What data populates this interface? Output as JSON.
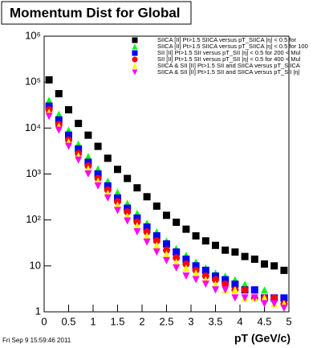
{
  "chart_data": {
    "type": "scatter",
    "title": "Momentum Dist for Global",
    "x_label": "pT (GeV/c)",
    "footer": "Fri Sep  9 15:59:46 2011",
    "log_y": true,
    "xlim": [
      0,
      5
    ],
    "xticks": [
      0,
      0.5,
      1,
      1.5,
      2,
      2.5,
      3,
      3.5,
      4,
      4.5,
      5
    ],
    "ylim": [
      1,
      1000000
    ],
    "yticks": [
      1,
      10,
      {
        "value": 100,
        "label": "10²"
      },
      {
        "value": 1000,
        "label": "10³"
      },
      {
        "value": 10000,
        "label": "10⁴"
      },
      {
        "value": 100000,
        "label": "10⁵"
      },
      {
        "value": 1000000,
        "label": "10⁶"
      }
    ],
    "x": [
      0.1,
      0.3,
      0.5,
      0.7,
      0.9,
      1.1,
      1.3,
      1.5,
      1.7,
      1.9,
      2.1,
      2.3,
      2.5,
      2.7,
      2.9,
      3.1,
      3.3,
      3.5,
      3.7,
      3.9,
      4.1,
      4.3,
      4.5,
      4.7,
      4.9
    ],
    "series": [
      {
        "name": "SIICA [II] Pt>1.5 SIICA versus pT_SIICA |η| < 0.5 for",
        "color": "#000000",
        "marker": "square",
        "values": [
          112000,
          56000,
          25000,
          12600,
          7000,
          4000,
          2200,
          1260,
          800,
          500,
          320,
          200,
          126,
          89,
          63,
          45,
          35,
          28,
          22,
          20,
          16,
          14,
          11,
          10,
          8
        ]
      },
      {
        "name": "SIICA [II] Pt>1.5 SIICA versus pT_SIICA |η| < 0.5 for 100",
        "color": "#00ff00",
        "marker": "triangle",
        "values": [
          40000,
          20000,
          9000,
          4500,
          2400,
          1300,
          700,
          400,
          230,
          140,
          85,
          55,
          35,
          24,
          17,
          12,
          9,
          7,
          6,
          5,
          4,
          3,
          3,
          2,
          2
        ]
      },
      {
        "name": "SII [II] Pt>1.5 SII versus pT_SII |η| < 0.5 for 200 < Mul",
        "color": "#0000ff",
        "marker": "square",
        "values": [
          30000,
          15000,
          7000,
          3500,
          1800,
          1000,
          550,
          300,
          180,
          110,
          70,
          45,
          30,
          20,
          14,
          10,
          8,
          6,
          5,
          4,
          3,
          3,
          2,
          2,
          2
        ]
      },
      {
        "name": "SII [II] Pt>1.5 SII versus pT_SII |η| < 0.5 for 400 < Mul",
        "color": "#ff0000",
        "marker": "circle",
        "values": [
          25000,
          12000,
          5500,
          2800,
          1500,
          800,
          450,
          250,
          150,
          90,
          55,
          35,
          22,
          15,
          11,
          8,
          6,
          5,
          4,
          3,
          3,
          2,
          2,
          2,
          1.5
        ]
      },
      {
        "name": "SIICA & SII [II] Pt>1.5 SII and SIICA versus pT_SIICA",
        "color": "#ffff00",
        "marker": "triangle",
        "values": [
          22000,
          11000,
          5000,
          2500,
          1300,
          700,
          380,
          210,
          120,
          75,
          45,
          28,
          18,
          12,
          9,
          7,
          5,
          4,
          3,
          3,
          2,
          2,
          2,
          1.5,
          1.5
        ]
      },
      {
        "name": "SIICA & SII [II] Pt>1.5 SII and SIICA versus pT_SII |η|",
        "color": "#ff00ff",
        "marker": "down",
        "values": [
          18000,
          9000,
          4000,
          2000,
          1000,
          550,
          300,
          160,
          95,
          55,
          33,
          20,
          13,
          9,
          6,
          5,
          4,
          3,
          3,
          2,
          2,
          2,
          1.5,
          1.5,
          1.2
        ]
      }
    ]
  }
}
